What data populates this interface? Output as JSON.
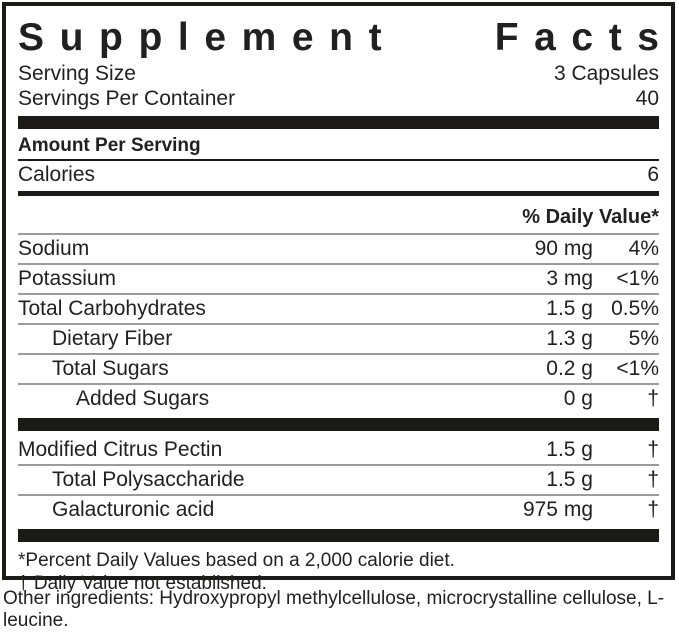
{
  "title": {
    "word1": "Supplement",
    "word2": "Facts"
  },
  "serving": {
    "size_label": "Serving Size",
    "size_value": "3 Capsules",
    "per_container_label": "Servings Per Container",
    "per_container_value": "40"
  },
  "amount_per_serving_label": "Amount Per Serving",
  "calories": {
    "label": "Calories",
    "value": "6"
  },
  "daily_value_header": "% Daily Value*",
  "nutrients": [
    {
      "name": "Sodium",
      "amount": "90 mg",
      "dv": "4%"
    },
    {
      "name": "Potassium",
      "amount": "3 mg",
      "dv": "<1%"
    },
    {
      "name": "Total Carbohydrates",
      "amount": "1.5 g",
      "dv": "0.5%"
    },
    {
      "name": "Dietary Fiber",
      "amount": "1.3 g",
      "dv": "5%"
    },
    {
      "name": "Total Sugars",
      "amount": "0.2 g",
      "dv": "<1%"
    },
    {
      "name": "Added Sugars",
      "amount": "0 g",
      "dv": "†"
    }
  ],
  "ingredients": [
    {
      "name": "Modified Citrus Pectin",
      "amount": "1.5 g",
      "dv": "†"
    },
    {
      "name": "Total Polysaccharide",
      "amount": "1.5 g",
      "dv": "†"
    },
    {
      "name": "Galacturonic acid",
      "amount": "975 mg",
      "dv": "†"
    }
  ],
  "footnotes": {
    "percent": "*Percent Daily Values based on a 2,000 calorie diet.",
    "dagger": "† Daily Value not established."
  },
  "other_ingredients": "Other ingredients: Hydroxypropyl methylcellulose, microcrystalline cellulose, L-leucine.",
  "colors": {
    "text": "#221f20",
    "bar": "#1c1a19",
    "separator": "#9c9c9c",
    "background": "#ffffff"
  }
}
